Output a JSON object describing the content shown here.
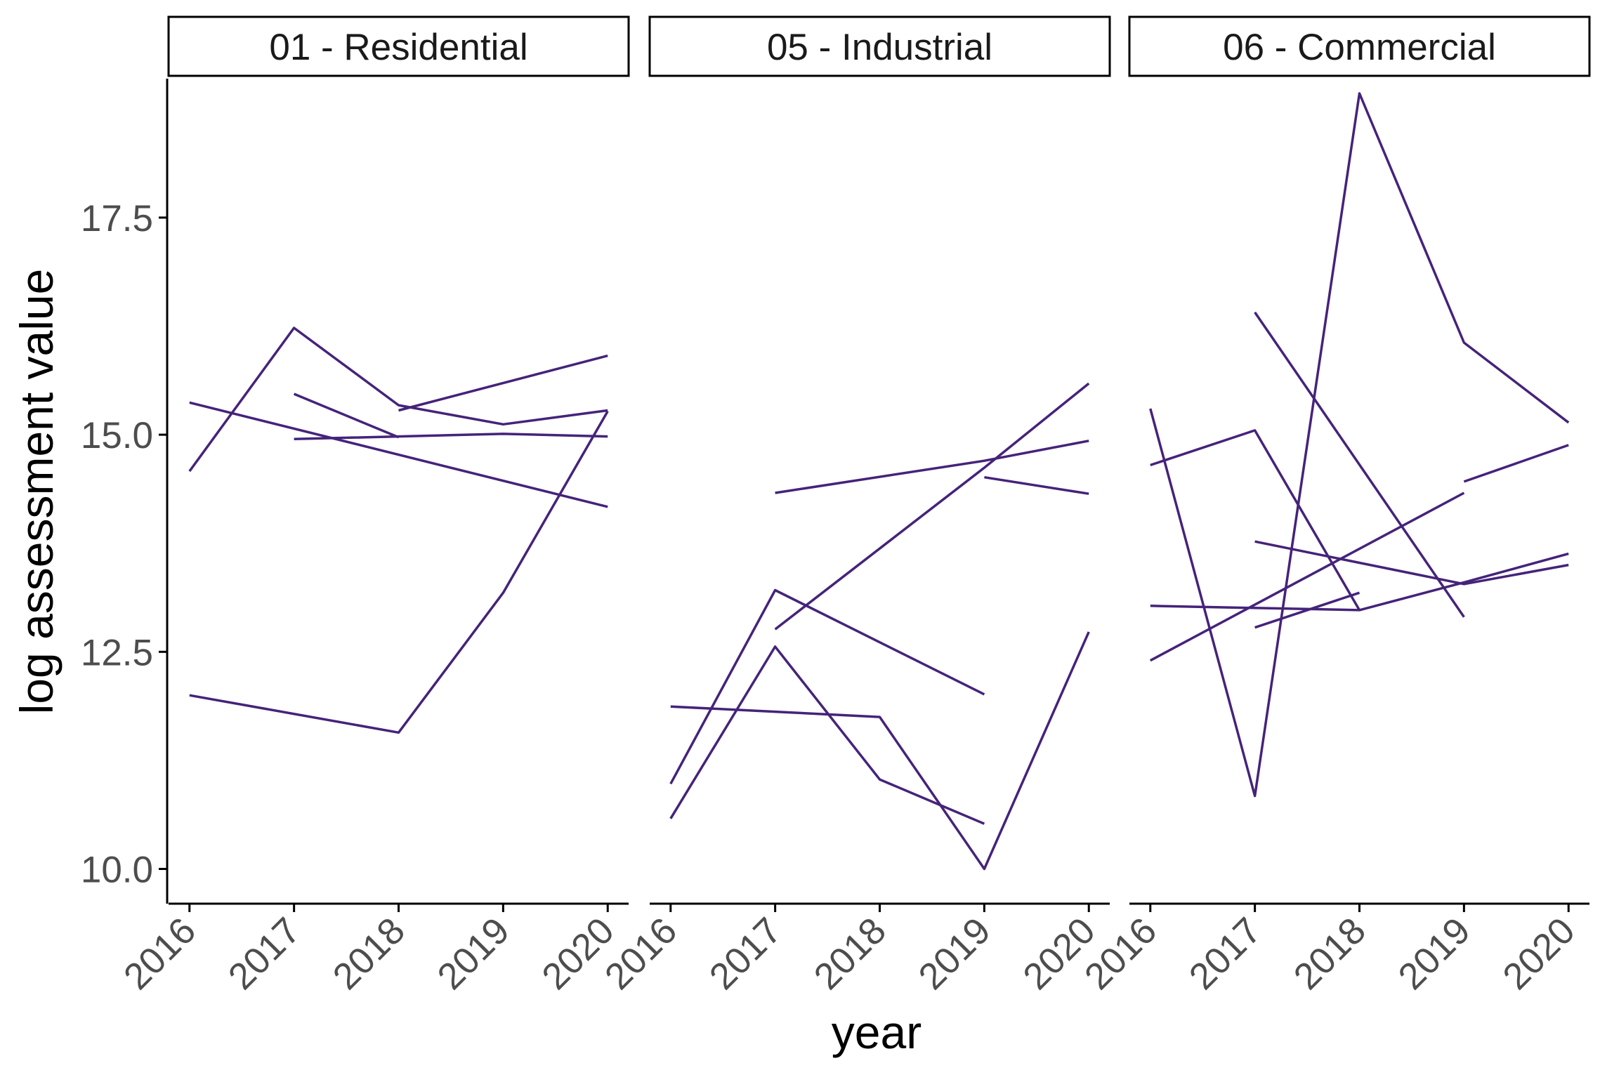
{
  "chart_data": {
    "type": "line",
    "facet_by": "class",
    "xlabel": "year",
    "ylabel": "log assessment value",
    "x_ticks": [
      2016,
      2017,
      2018,
      2019,
      2020
    ],
    "y_ticks": [
      10.0,
      12.5,
      15.0,
      17.5
    ],
    "y_tick_labels": [
      "10.0",
      "12.5",
      "15.0",
      "17.5"
    ],
    "xlim": [
      2015.8,
      2020.2
    ],
    "ylim": [
      9.6,
      19.1
    ],
    "line_color": "#45237A",
    "legend": "none",
    "grid": false,
    "panels": [
      {
        "title": "01 - Residential",
        "series": [
          {
            "points": [
              [
                2016,
                14.58
              ],
              [
                2017,
                16.23
              ],
              [
                2018,
                15.34
              ],
              [
                2019,
                15.12
              ],
              [
                2020,
                15.28
              ]
            ]
          },
          {
            "points": [
              [
                2016,
                15.37
              ],
              [
                2020,
                14.17
              ]
            ]
          },
          {
            "points": [
              [
                2017,
                15.47
              ],
              [
                2018,
                14.97
              ]
            ]
          },
          {
            "points": [
              [
                2017,
                14.95
              ],
              [
                2019,
                15.01
              ],
              [
                2020,
                14.98
              ]
            ]
          },
          {
            "points": [
              [
                2018,
                15.28
              ],
              [
                2020,
                15.91
              ]
            ]
          },
          {
            "points": [
              [
                2016,
                12.0
              ],
              [
                2018,
                11.57
              ],
              [
                2019,
                13.18
              ],
              [
                2020,
                15.27
              ]
            ]
          }
        ]
      },
      {
        "title": "05 - Industrial",
        "series": [
          {
            "points": [
              [
                2017,
                14.33
              ],
              [
                2019,
                14.7
              ],
              [
                2020,
                14.93
              ]
            ]
          },
          {
            "points": [
              [
                2017,
                12.76
              ],
              [
                2019,
                14.62
              ],
              [
                2020,
                15.59
              ]
            ]
          },
          {
            "points": [
              [
                2016,
                10.98
              ],
              [
                2017,
                13.21
              ],
              [
                2019,
                12.01
              ]
            ]
          },
          {
            "points": [
              [
                2016,
                10.58
              ],
              [
                2017,
                12.56
              ],
              [
                2018,
                11.03
              ],
              [
                2019,
                10.52
              ]
            ]
          },
          {
            "points": [
              [
                2016,
                11.87
              ],
              [
                2018,
                11.75
              ],
              [
                2019,
                10.0
              ],
              [
                2020,
                12.73
              ]
            ]
          },
          {
            "points": [
              [
                2019,
                14.51
              ],
              [
                2020,
                14.32
              ]
            ]
          }
        ]
      },
      {
        "title": "06 - Commercial",
        "series": [
          {
            "points": [
              [
                2016,
                15.3
              ],
              [
                2017,
                10.84
              ],
              [
                2018,
                18.93
              ],
              [
                2019,
                16.06
              ],
              [
                2020,
                15.14
              ]
            ]
          },
          {
            "points": [
              [
                2016,
                14.65
              ],
              [
                2017,
                15.05
              ],
              [
                2018,
                12.98
              ],
              [
                2019,
                13.3
              ],
              [
                2020,
                13.63
              ]
            ]
          },
          {
            "points": [
              [
                2017,
                16.41
              ],
              [
                2019,
                12.9
              ]
            ]
          },
          {
            "points": [
              [
                2016,
                12.4
              ],
              [
                2019,
                14.33
              ]
            ]
          },
          {
            "points": [
              [
                2019,
                14.46
              ],
              [
                2020,
                14.88
              ]
            ]
          },
          {
            "points": [
              [
                2016,
                13.03
              ],
              [
                2018,
                12.98
              ]
            ]
          },
          {
            "points": [
              [
                2017,
                13.77
              ],
              [
                2019,
                13.28
              ],
              [
                2020,
                13.5
              ]
            ]
          },
          {
            "points": [
              [
                2017,
                12.78
              ],
              [
                2018,
                13.18
              ]
            ]
          }
        ]
      }
    ]
  }
}
